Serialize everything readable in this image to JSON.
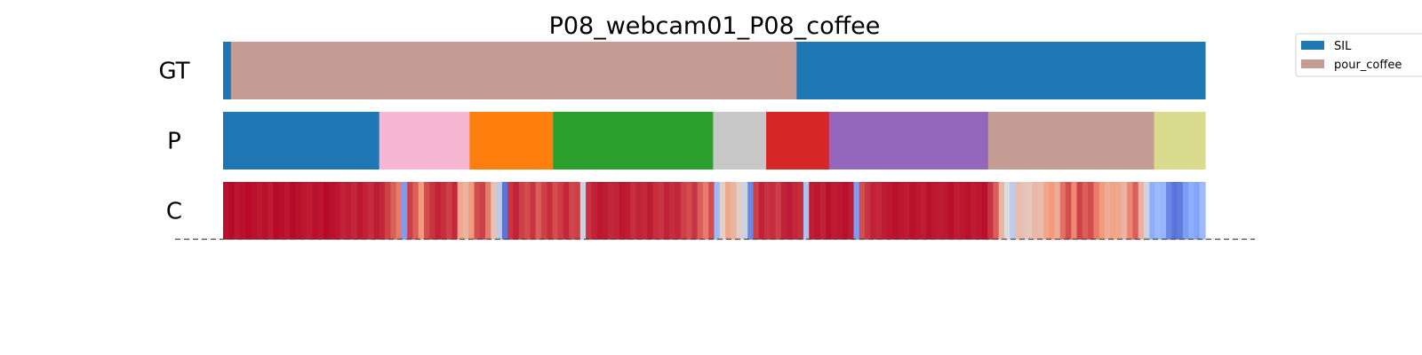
{
  "chart_data": {
    "type": "segmentation_timeline",
    "title": "P08_webcam01_P08_coffee",
    "x_range": [
      0,
      1
    ],
    "rows": [
      {
        "label": "GT",
        "segments": [
          {
            "start": 0.0,
            "end": 0.008,
            "color": "#1f77b4",
            "class": "SIL"
          },
          {
            "start": 0.008,
            "end": 0.584,
            "color": "#c49c94",
            "class": "pour_coffee"
          },
          {
            "start": 0.584,
            "end": 1.0,
            "color": "#1f77b4",
            "class": "SIL"
          }
        ]
      },
      {
        "label": "P",
        "segments": [
          {
            "start": 0.0,
            "end": 0.159,
            "color": "#1f77b4"
          },
          {
            "start": 0.159,
            "end": 0.251,
            "color": "#f7b6d2"
          },
          {
            "start": 0.251,
            "end": 0.336,
            "color": "#ff7f0e"
          },
          {
            "start": 0.336,
            "end": 0.499,
            "color": "#2ca02c"
          },
          {
            "start": 0.499,
            "end": 0.553,
            "color": "#c7c7c7"
          },
          {
            "start": 0.553,
            "end": 0.617,
            "color": "#d62728"
          },
          {
            "start": 0.617,
            "end": 0.779,
            "color": "#9467bd"
          },
          {
            "start": 0.779,
            "end": 0.948,
            "color": "#c49c94"
          },
          {
            "start": 0.948,
            "end": 1.0,
            "color": "#dbdb8d"
          }
        ]
      },
      {
        "label": "C",
        "colormap": "coolwarm",
        "confidence": [
          0.98,
          0.99,
          0.97,
          0.98,
          0.99,
          0.98,
          0.97,
          0.98,
          0.96,
          0.99,
          0.98,
          0.97,
          0.99,
          0.98,
          0.97,
          0.96,
          0.98,
          0.97,
          0.99,
          0.98,
          0.97,
          0.95,
          0.96,
          0.94,
          0.97,
          0.95,
          0.93,
          0.96,
          0.94,
          0.9,
          0.85,
          0.8,
          0.2,
          0.9,
          0.85,
          0.75,
          0.88,
          0.92,
          0.95,
          0.93,
          0.9,
          0.94,
          0.7,
          0.65,
          0.75,
          0.88,
          0.9,
          0.8,
          0.6,
          0.4,
          0.1,
          0.92,
          0.95,
          0.9,
          0.88,
          0.92,
          0.85,
          0.9,
          0.93,
          0.88,
          0.91,
          0.94,
          0.89,
          0.9,
          0.45,
          0.92,
          0.95,
          0.97,
          0.96,
          0.94,
          0.95,
          0.97,
          0.96,
          0.93,
          0.95,
          0.94,
          0.96,
          0.93,
          0.92,
          0.95,
          0.93,
          0.94,
          0.9,
          0.88,
          0.92,
          0.85,
          0.8,
          0.88,
          0.3,
          0.55,
          0.7,
          0.65,
          0.55,
          0.45,
          0.15,
          0.9,
          0.95,
          0.92,
          0.93,
          0.9,
          0.95,
          0.96,
          0.94,
          0.93,
          0.35,
          0.96,
          0.97,
          0.95,
          0.98,
          0.96,
          0.97,
          0.98,
          0.96,
          0.2,
          0.88,
          0.92,
          0.95,
          0.94,
          0.96,
          0.97,
          0.98,
          0.97,
          0.96,
          0.98,
          0.97,
          0.96,
          0.98,
          0.97,
          0.96,
          0.97,
          0.98,
          0.96,
          0.97,
          0.98,
          0.96,
          0.97,
          0.98,
          0.92,
          0.85,
          0.65,
          0.5,
          0.4,
          0.62,
          0.6,
          0.58,
          0.64,
          0.62,
          0.7,
          0.75,
          0.68,
          0.82,
          0.88,
          0.78,
          0.9,
          0.85,
          0.88,
          0.8,
          0.75,
          0.68,
          0.72,
          0.7,
          0.65,
          0.78,
          0.85,
          0.66,
          0.45,
          0.25,
          0.3,
          0.28,
          0.15,
          0.1,
          0.12,
          0.2,
          0.25,
          0.22,
          0.3
        ]
      }
    ],
    "legend": {
      "position": "top-right",
      "entries": [
        {
          "label": "SIL",
          "color": "#1f77b4"
        },
        {
          "label": "pour_coffee",
          "color": "#c49c94"
        }
      ]
    }
  }
}
